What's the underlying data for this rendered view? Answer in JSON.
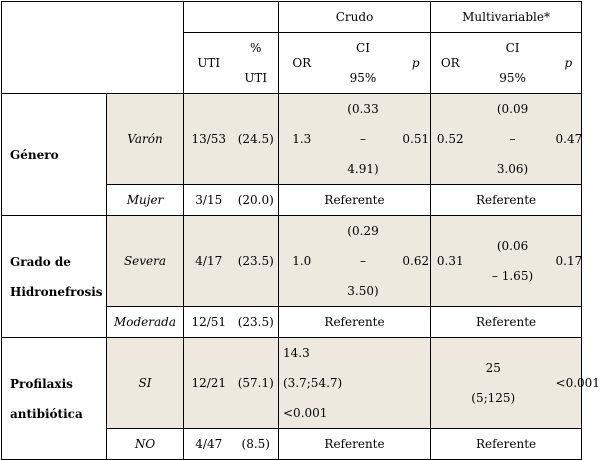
{
  "header": {
    "crudo": "Crudo",
    "multivariable": "Multivariable*",
    "uti": "UTI",
    "pct_top": "%",
    "pct_bottom": "UTI",
    "or": "OR",
    "ci_top": "CI",
    "ci_bottom": "95%",
    "p": "p"
  },
  "rows": {
    "genero": {
      "label": "Género",
      "varon": {
        "label": "Varón",
        "uti": "13/53",
        "pct": "(24.5)",
        "or": "1.3",
        "ci": [
          "(0.33",
          "–",
          "4.91)"
        ],
        "p": "0.51",
        "m_or": "0.52",
        "m_ci": [
          "(0.09",
          "–",
          "3.06)"
        ],
        "m_p": "0.47"
      },
      "mujer": {
        "label": "Mujer",
        "uti": "3/15",
        "pct": "(20.0)",
        "crudo": "Referente",
        "multi": "Referente"
      }
    },
    "grado": {
      "label_1": "Grado de",
      "label_2": "Hidronefrosis",
      "severa": {
        "label": "Severa",
        "uti": "4/17",
        "pct": "(23.5)",
        "or": "1.0",
        "ci": [
          "(0.29",
          "–",
          "3.50)"
        ],
        "p": "0.62",
        "m_or": "0.31",
        "m_ci": [
          "(0.06",
          "– 1.65)"
        ],
        "m_p": "0.17"
      },
      "moderada": {
        "label": "Moderada",
        "uti": "12/51",
        "pct": "(23.5)",
        "crudo": "Referente",
        "multi": "Referente"
      }
    },
    "profilaxis": {
      "label_1": "Profilaxis",
      "label_2": "antibiótica",
      "si": {
        "label": "SI",
        "uti": "12/21",
        "pct": "(57.1)",
        "crudo": [
          "14.3",
          "(3.7;54.7)",
          "<0.001"
        ],
        "multi": [
          "25",
          "(5;125)"
        ],
        "m_p": "<0.001"
      },
      "no": {
        "label": "NO",
        "uti": "4/47",
        "pct": "(8.5)",
        "crudo": "Referente",
        "multi": "Referente"
      }
    }
  }
}
